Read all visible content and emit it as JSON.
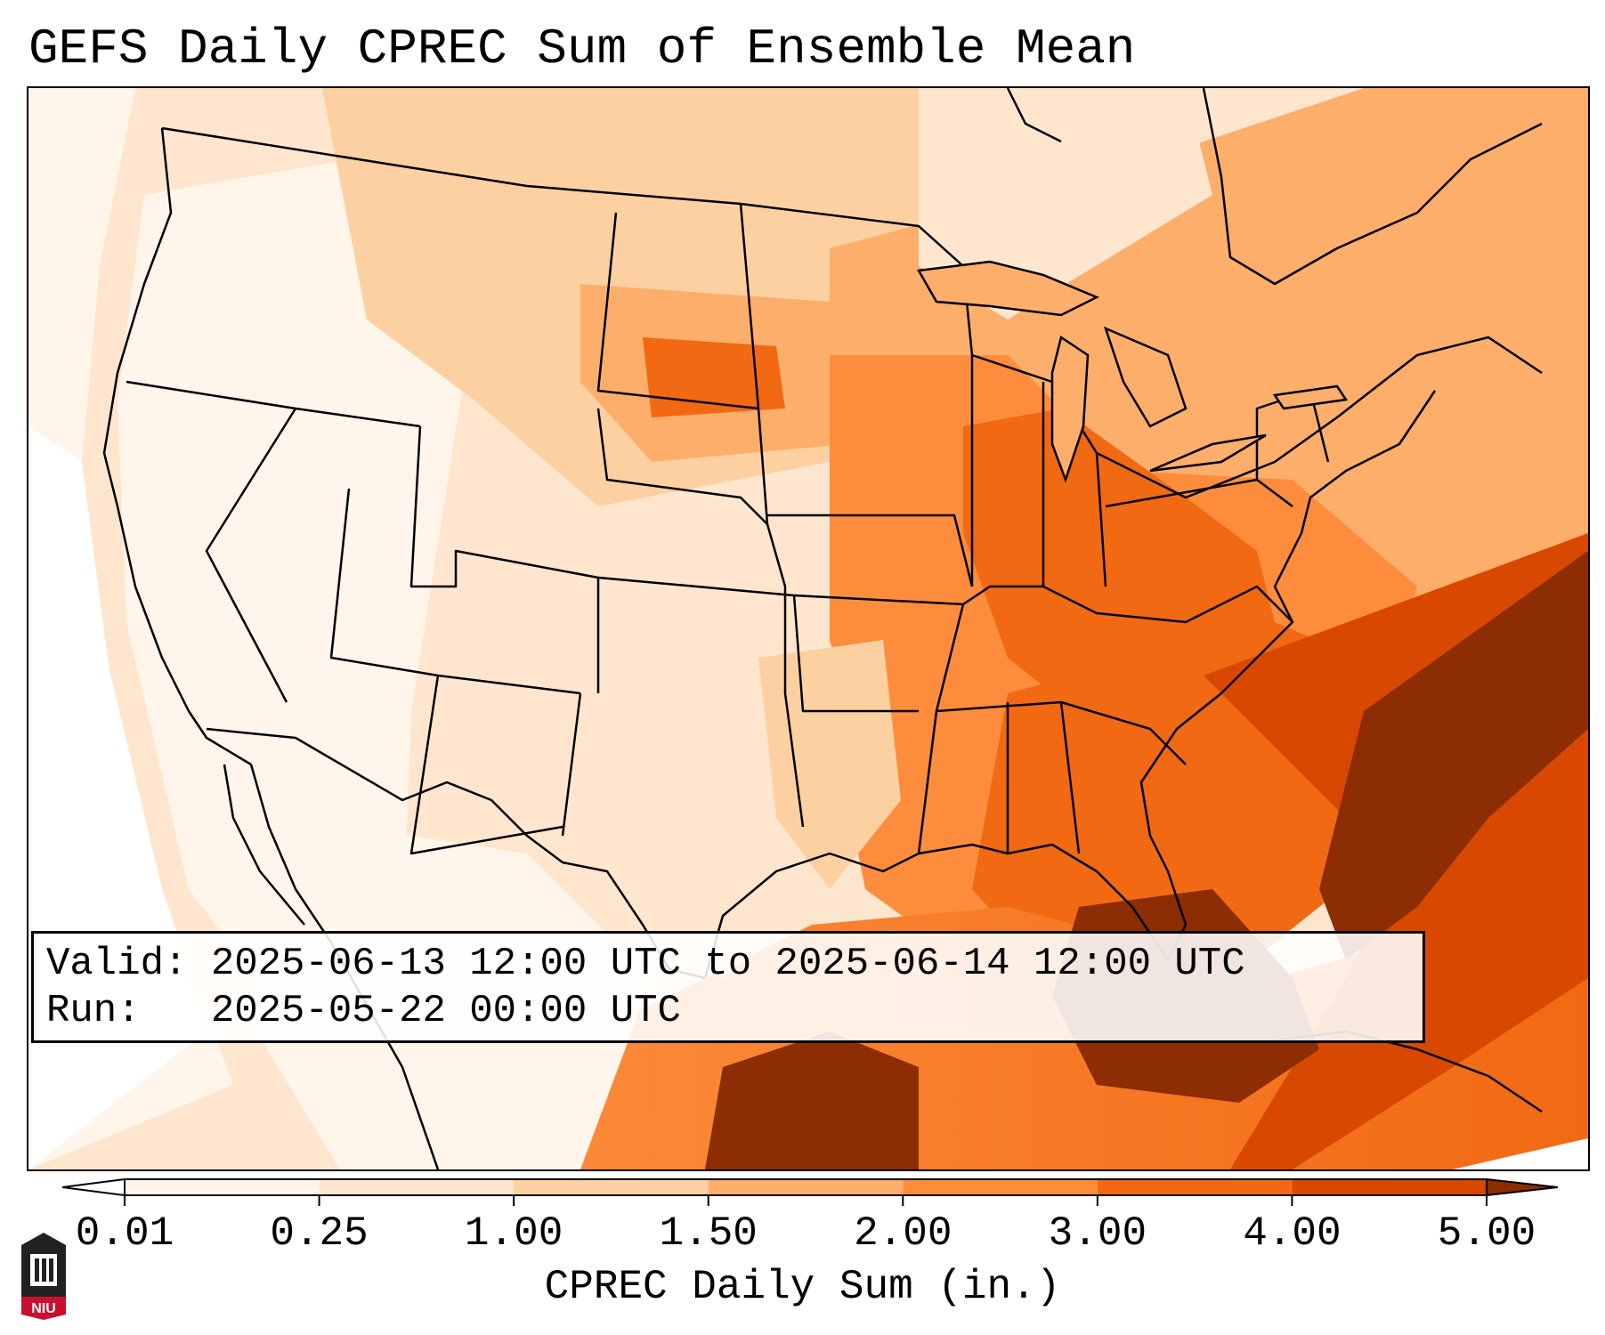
{
  "title": "GEFS Daily CPREC Sum of Ensemble Mean",
  "info": {
    "valid_line": "Valid: 2025-06-13 12:00 UTC to 2025-06-14 12:00 UTC",
    "run_line": "Run:   2025-05-22 00:00 UTC"
  },
  "colorbar": {
    "label": "CPREC Daily Sum (in.)",
    "ticks": [
      "0.01",
      "0.25",
      "1.00",
      "1.50",
      "2.00",
      "3.00",
      "4.00",
      "5.00"
    ],
    "colors": [
      "#fff5eb",
      "#fee6ce",
      "#fdd0a2",
      "#fdae6b",
      "#fd8d3c",
      "#f16913",
      "#d94801",
      "#8c2d04"
    ],
    "extend": "both"
  },
  "logo": {
    "text": "NIU",
    "accent": "#c8102e"
  }
}
